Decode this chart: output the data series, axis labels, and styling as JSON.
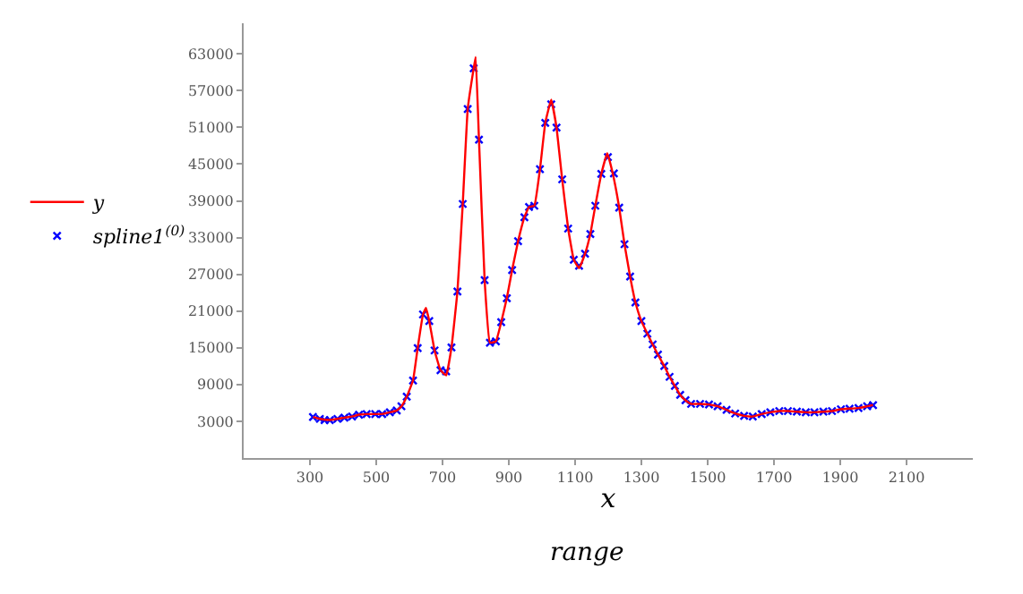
{
  "chart_data": {
    "type": "line",
    "xlabel": "x",
    "annotations": [
      "range"
    ],
    "xlim": [
      100,
      2300
    ],
    "xticks": [
      300,
      500,
      700,
      900,
      1100,
      1300,
      1500,
      1700,
      1900,
      2100
    ],
    "ylim": [
      -3000,
      68000
    ],
    "yticks": [
      3000,
      9000,
      15000,
      21000,
      27000,
      33000,
      39000,
      45000,
      51000,
      57000,
      63000
    ],
    "legend": "left",
    "series": [
      {
        "name": "y",
        "color": "#ff0000",
        "line_style": "solid",
        "marker": "none",
        "x": [
          309,
          330,
          360,
          404,
          427,
          448,
          471,
          497,
          518,
          541,
          562,
          576,
          592,
          611,
          625,
          641,
          650,
          660,
          676,
          694,
          711,
          727,
          745,
          761,
          776,
          794,
          800,
          810,
          827,
          843,
          861,
          877,
          894,
          910,
          928,
          947,
          961,
          977,
          994,
          1010,
          1028,
          1044,
          1061,
          1079,
          1096,
          1112,
          1130,
          1146,
          1161,
          1179,
          1197,
          1214,
          1233,
          1249,
          1266,
          1282,
          1300,
          1318,
          1334,
          1350,
          1369,
          1385,
          1401,
          1417,
          1433,
          1450,
          1477,
          1504,
          1530,
          1557,
          1583,
          1610,
          1636,
          1663,
          1689,
          1716,
          1742,
          1769,
          1796,
          1822,
          1849,
          1875,
          1902,
          1928,
          1955,
          1981,
          1999
        ],
        "values": [
          3690,
          3390,
          3200,
          3590,
          3780,
          4080,
          4180,
          4180,
          4180,
          4470,
          4760,
          5450,
          7020,
          9670,
          14960,
          20450,
          21500,
          19370,
          14570,
          11330,
          10500,
          15060,
          24180,
          38490,
          53980,
          60650,
          62500,
          48980,
          26040,
          15840,
          16040,
          19180,
          23100,
          27710,
          32410,
          36330,
          38000,
          38200,
          44180,
          51730,
          55500,
          50950,
          42510,
          34470,
          29370,
          28000,
          30350,
          33590,
          38200,
          43390,
          46800,
          43390,
          37900,
          31920,
          26630,
          22410,
          19370,
          17310,
          15550,
          13880,
          12020,
          10260,
          8780,
          7310,
          6430,
          5840,
          5840,
          5740,
          5450,
          4860,
          4270,
          3880,
          3780,
          4180,
          4470,
          4670,
          4670,
          4570,
          4470,
          4470,
          4570,
          4670,
          4960,
          5060,
          5160,
          5450,
          5650
        ]
      },
      {
        "name": "spline1$^{(0)}$",
        "color": "#0000ff",
        "type": "scatter",
        "marker": "cross",
        "x": [
          309,
          330,
          344,
          360,
          383,
          404,
          427,
          448,
          471,
          497,
          518,
          541,
          562,
          576,
          592,
          611,
          625,
          641,
          660,
          676,
          694,
          711,
          727,
          745,
          761,
          776,
          794,
          810,
          827,
          843,
          861,
          877,
          894,
          910,
          928,
          947,
          961,
          977,
          994,
          1010,
          1028,
          1044,
          1061,
          1079,
          1096,
          1112,
          1130,
          1146,
          1161,
          1179,
          1199,
          1217,
          1233,
          1249,
          1266,
          1282,
          1300,
          1318,
          1334,
          1350,
          1369,
          1385,
          1401,
          1417,
          1433,
          1450,
          1477,
          1504,
          1530,
          1557,
          1583,
          1610,
          1636,
          1663,
          1689,
          1716,
          1742,
          1769,
          1796,
          1822,
          1849,
          1875,
          1902,
          1928,
          1955,
          1981,
          1999
        ],
        "values": [
          3690,
          3390,
          3200,
          3200,
          3390,
          3590,
          3780,
          4080,
          4180,
          4180,
          4180,
          4470,
          4760,
          5450,
          7020,
          9670,
          14960,
          20450,
          19370,
          14570,
          11330,
          11140,
          15060,
          24180,
          38490,
          53980,
          60650,
          48980,
          26040,
          15840,
          16040,
          19180,
          23100,
          27710,
          32410,
          36330,
          38000,
          38200,
          44180,
          51730,
          54770,
          50950,
          42510,
          34470,
          29370,
          28390,
          30350,
          33590,
          38200,
          43390,
          46140,
          43490,
          37900,
          31920,
          26630,
          22410,
          19370,
          17310,
          15550,
          13880,
          12020,
          10260,
          8780,
          7310,
          6430,
          5840,
          5840,
          5740,
          5450,
          4860,
          4270,
          3880,
          3780,
          4180,
          4470,
          4670,
          4670,
          4570,
          4470,
          4470,
          4570,
          4670,
          4960,
          5060,
          5160,
          5450,
          5650
        ]
      }
    ]
  }
}
